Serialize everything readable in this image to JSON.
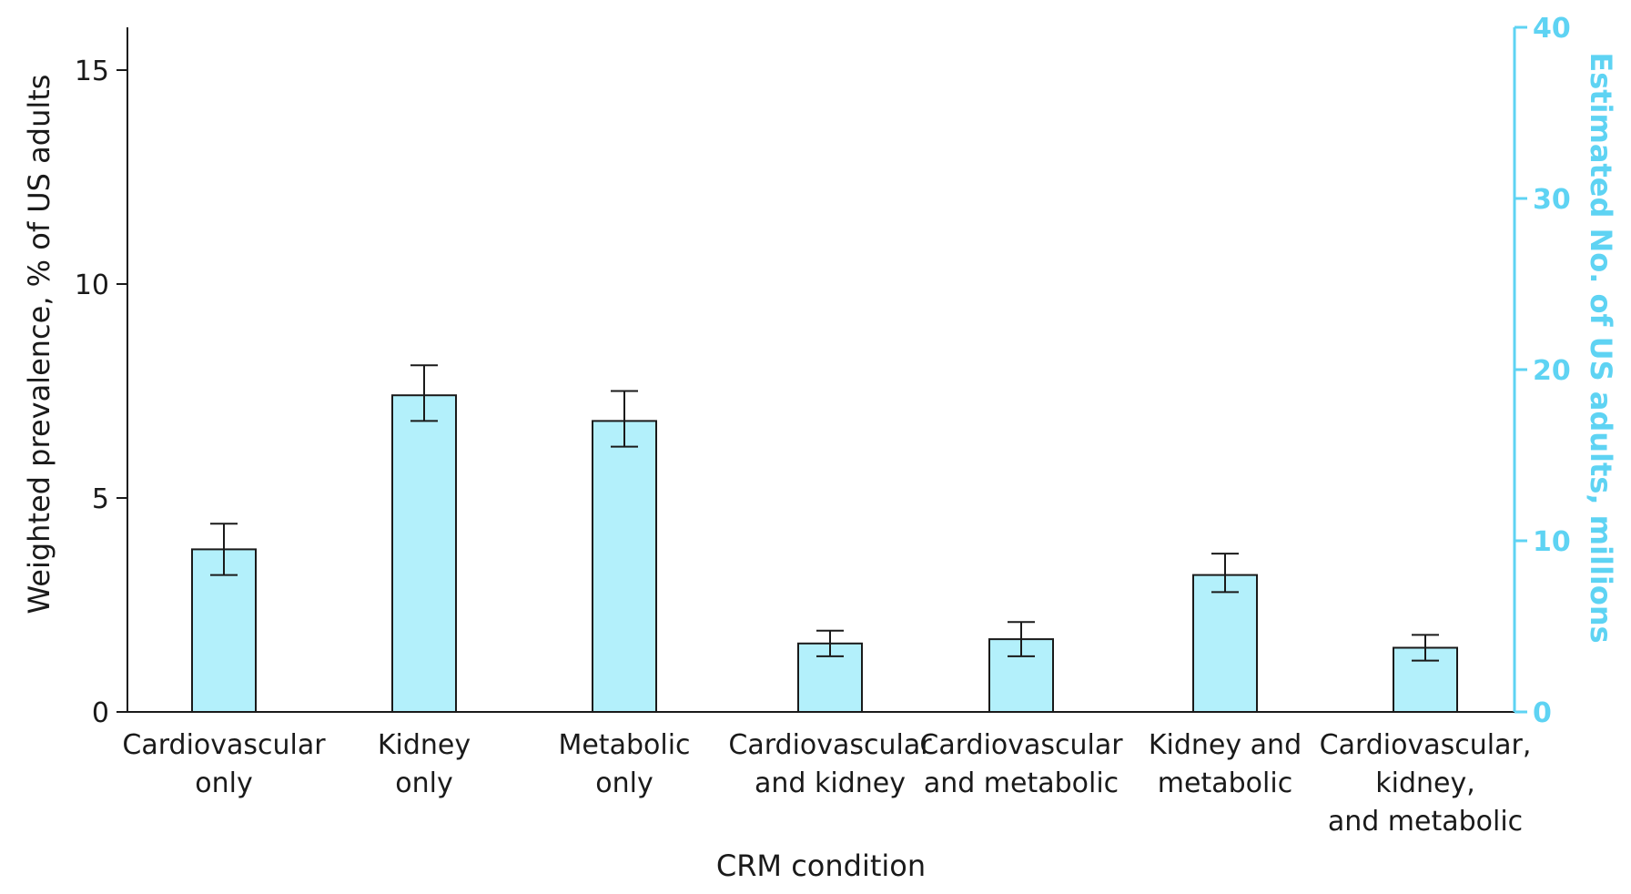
{
  "colors": {
    "bar_fill": "#B3F0FB",
    "bar_stroke": "#1a1a1a",
    "axis": "#1a1a1a",
    "right_axis": "#5ED3F3"
  },
  "chart_data": {
    "type": "bar",
    "title": "",
    "xlabel": "CRM condition",
    "ylabel": "Weighted prevalence, % of US adults",
    "y2label": "Estimated No. of US adults, millions",
    "ylim": [
      0,
      16
    ],
    "yticks": [
      0,
      5,
      10,
      15
    ],
    "y2lim": [
      0,
      40
    ],
    "y2ticks": [
      0,
      10,
      20,
      30,
      40
    ],
    "grid": false,
    "categories": [
      [
        "Cardiovascular",
        "only"
      ],
      [
        "Kidney",
        "only"
      ],
      [
        "Metabolic",
        "only"
      ],
      [
        "Cardiovascular",
        "and kidney"
      ],
      [
        "Cardiovascular",
        "and metabolic"
      ],
      [
        "Kidney and",
        "metabolic"
      ],
      [
        "Cardiovascular,",
        "kidney,",
        "and metabolic"
      ]
    ],
    "series": [
      {
        "values": [
          3.8,
          7.4,
          6.8,
          1.6,
          1.7,
          3.2,
          1.5
        ],
        "ci_low": [
          3.2,
          6.8,
          6.2,
          1.3,
          1.3,
          2.8,
          1.2
        ],
        "ci_high": [
          4.4,
          8.1,
          7.5,
          1.9,
          2.1,
          3.7,
          1.8
        ]
      }
    ]
  }
}
